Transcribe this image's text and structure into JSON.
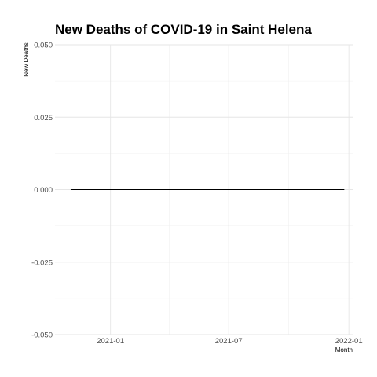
{
  "chart_data": {
    "type": "line",
    "title": "New Deaths of COVID-19 in Saint Helena",
    "xlabel": "Month",
    "ylabel": "New Deaths",
    "x_type": "date",
    "xlim": [
      "2020-10-08",
      "2022-01-08"
    ],
    "ylim": [
      -0.05,
      0.05
    ],
    "x_ticks": [
      {
        "value": "2021-01-01",
        "label": "2021-01"
      },
      {
        "value": "2021-07-01",
        "label": "2021-07"
      },
      {
        "value": "2022-01-01",
        "label": "2022-01"
      }
    ],
    "x_minor_ticks": [
      "2020-10-01",
      "2021-04-01",
      "2021-10-01"
    ],
    "y_ticks": [
      {
        "value": -0.05,
        "label": "-0.050"
      },
      {
        "value": -0.025,
        "label": "-0.025"
      },
      {
        "value": 0,
        "label": "0.000"
      },
      {
        "value": 0.025,
        "label": "0.025"
      },
      {
        "value": 0.05,
        "label": "0.050"
      }
    ],
    "grid": true,
    "series": [
      {
        "color": "#000000",
        "points": [
          {
            "x": "2020-11-01",
            "y": 0
          },
          {
            "x": "2021-12-25",
            "y": 0
          }
        ]
      }
    ]
  }
}
